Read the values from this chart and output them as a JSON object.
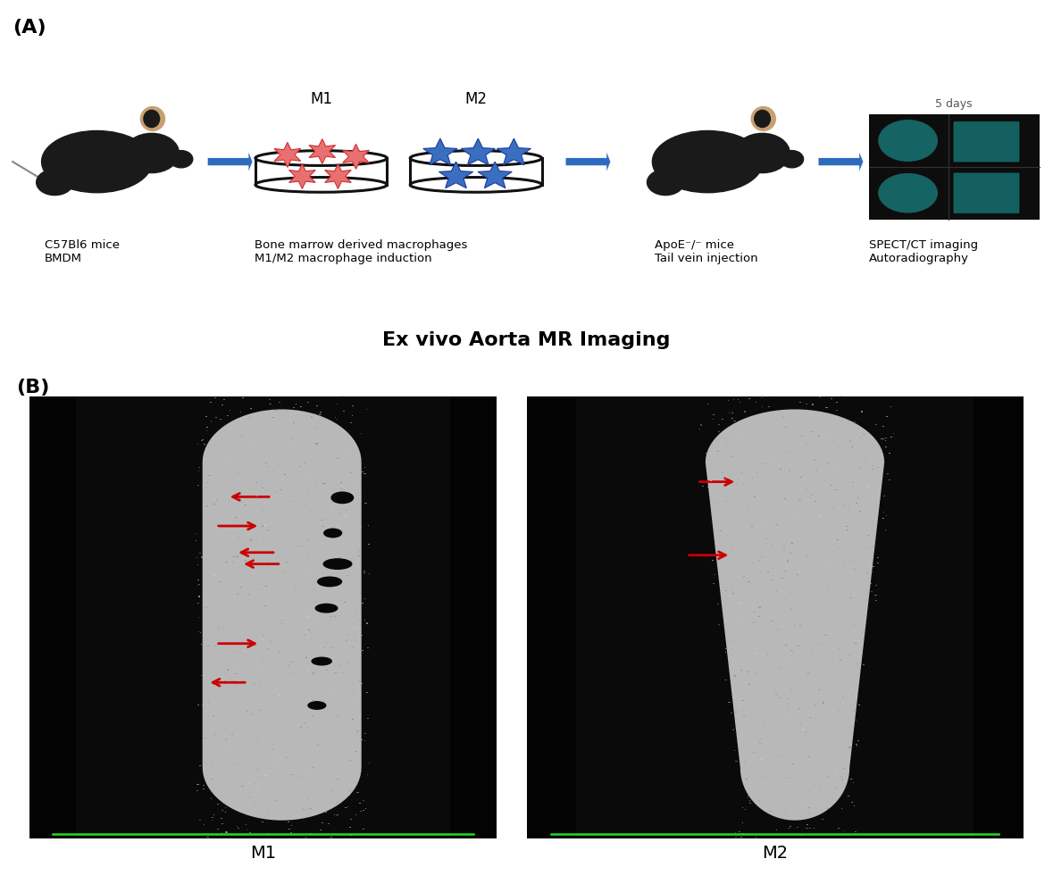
{
  "panel_a_label": "(A)",
  "panel_b_label": "(B)",
  "label_c57": "C57Bl6 mice\nBMDM",
  "label_bone_marrow": "Bone marrow derived macrophages\nM1/M2 macrophage induction",
  "label_apoe": "ApoE⁻/⁻ mice\nTail vein injection",
  "label_spect": "SPECT/CT imaging\nAutoradiography",
  "label_5days": "5 days",
  "label_m1_dish": "M1",
  "label_m2_dish": "M2",
  "label_m1_bottom": "M1",
  "label_m2_bottom": "M2",
  "title_b": "Ex vivo Aorta MR Imaging",
  "bg_color": "#ffffff",
  "arrow_color": "#2d6bbf",
  "red_arrow_color": "#cc0000",
  "star_color_m1": "#e87070",
  "star_color_m2": "#3a6fbf",
  "dish_color": "#111111",
  "text_color": "#000000",
  "m1_arrows": [
    [
      2.58,
      4.38,
      -0.42,
      0.0
    ],
    [
      2.05,
      4.05,
      0.42,
      0.0
    ],
    [
      2.62,
      3.75,
      -0.38,
      0.0
    ],
    [
      2.67,
      3.62,
      -0.38,
      0.0
    ],
    [
      2.05,
      2.72,
      0.42,
      0.0
    ],
    [
      2.35,
      2.28,
      -0.38,
      0.0
    ]
  ],
  "m2_arrows": [
    [
      6.62,
      4.55,
      0.38,
      0.0
    ],
    [
      6.52,
      3.72,
      0.42,
      0.0
    ]
  ]
}
